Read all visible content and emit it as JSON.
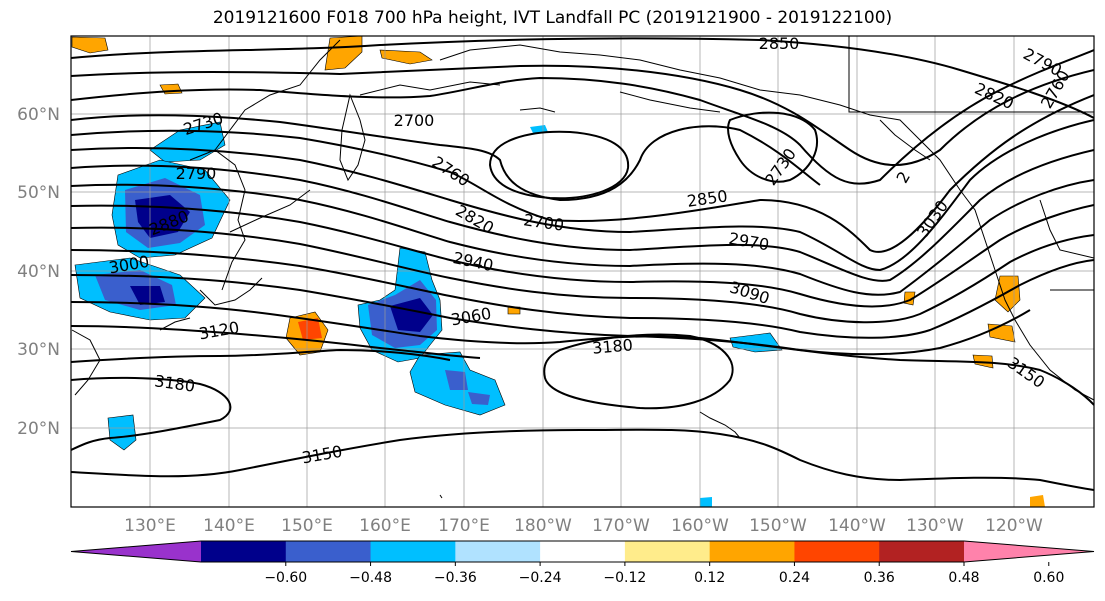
{
  "title": "2019121600 F018 700 hPa height, IVT Landfall PC (2019121900 - 2019122100)",
  "lat_labels": [
    "60°N",
    "50°N",
    "40°N",
    "30°N",
    "20°N"
  ],
  "lon_labels": [
    "130°E",
    "140°E",
    "150°E",
    "160°E",
    "170°E",
    "180°W",
    "170°W",
    "160°W",
    "150°W",
    "140°W",
    "130°W",
    "120°W"
  ],
  "contour_labels": [
    "2850",
    "2790",
    "2760",
    "2820",
    "2730",
    "2700",
    "2790",
    "2730",
    "2760",
    "2820",
    "2880",
    "2700",
    "2850",
    "3000",
    "2940",
    "2970",
    "3030",
    "3090",
    "3120",
    "3060",
    "3180",
    "3180",
    "3150",
    "3150",
    "2"
  ],
  "colorbar": {
    "ticks": [
      "−0.60",
      "−0.48",
      "−0.36",
      "−0.24",
      "−0.12",
      "0.12",
      "0.24",
      "0.36",
      "0.48",
      "0.60"
    ],
    "colors": [
      "#9932cc",
      "#00008b",
      "#3a5fcd",
      "#00bfff",
      "#b0e2ff",
      "#ffffff",
      "#ffec8b",
      "#ffa500",
      "#ff4500",
      "#b22222",
      "#ff82ab"
    ]
  }
}
